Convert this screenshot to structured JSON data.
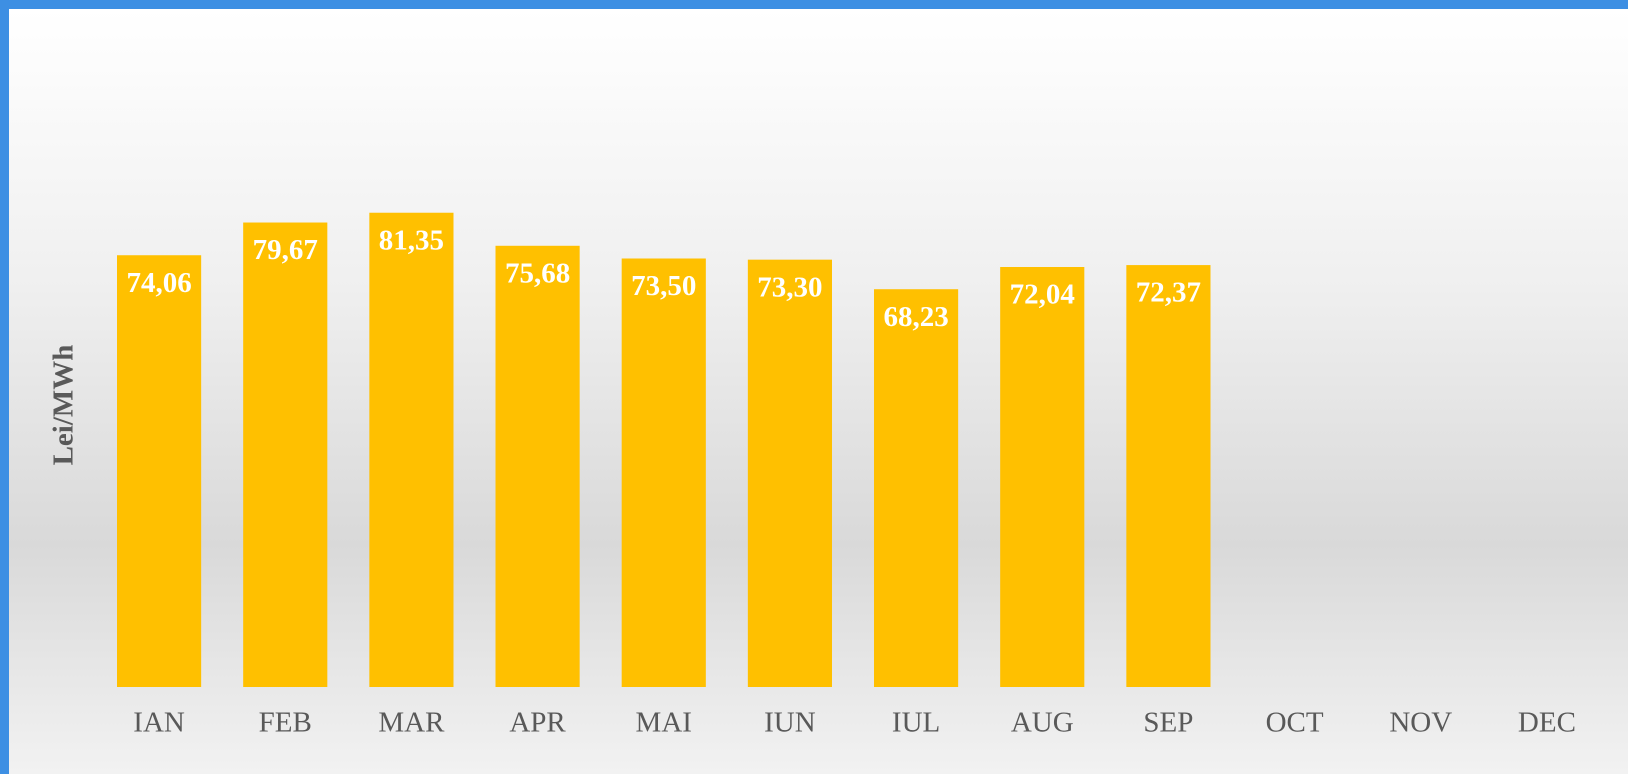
{
  "chart_data": {
    "type": "bar",
    "y_label": "Lei/MWh",
    "categories": [
      "IAN",
      "FEB",
      "MAR",
      "APR",
      "MAI",
      "IUN",
      "IUL",
      "AUG",
      "SEP",
      "OCT",
      "NOV",
      "DEC"
    ],
    "values": [
      74.06,
      79.67,
      81.35,
      75.68,
      73.5,
      73.3,
      68.23,
      72.04,
      72.37,
      null,
      null,
      null
    ],
    "value_labels": [
      "74,06",
      "79,67",
      "81,35",
      "75,68",
      "73,50",
      "73,30",
      "68,23",
      "72,04",
      "72,37",
      null,
      null,
      null
    ],
    "color": "#ffc000",
    "ylim": [
      0,
      100
    ]
  }
}
